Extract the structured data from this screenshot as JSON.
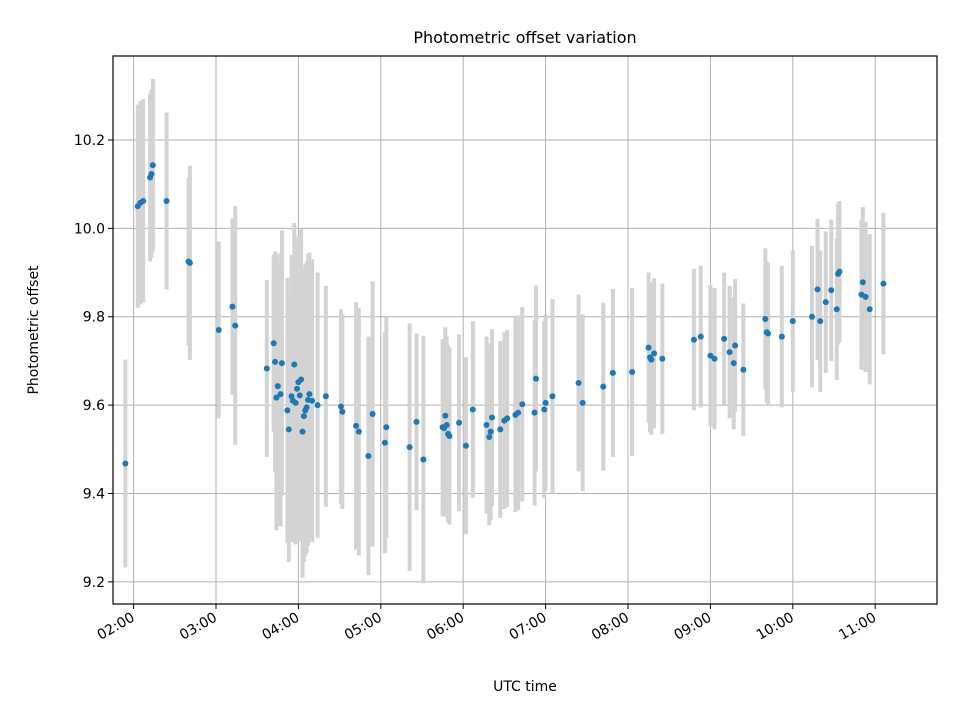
{
  "chart_data": {
    "type": "scatter",
    "title": "Photometric offset variation",
    "xlabel": "UTC time",
    "ylabel": "Photometric offset",
    "x_ticks": [
      "02:00",
      "03:00",
      "04:00",
      "05:00",
      "06:00",
      "07:00",
      "08:00",
      "09:00",
      "10:00",
      "11:00"
    ],
    "y_ticks": [
      "9.2",
      "9.4",
      "9.6",
      "9.8",
      "10.0",
      "10.2"
    ],
    "xlim": [
      "01:45",
      "11:45"
    ],
    "ylim": [
      9.15,
      10.39
    ],
    "grid": true,
    "colors": {
      "points": "#1f77b4",
      "errorbars": "#d3d3d3",
      "grid": "#b0b0b0"
    },
    "series": [
      {
        "points": [
          [
            "01:54",
            9.468,
            0.235
          ],
          [
            "02:03",
            10.05,
            0.23
          ],
          [
            "02:05",
            10.058,
            0.23
          ],
          [
            "02:07",
            10.062,
            0.23
          ],
          [
            "02:12",
            10.115,
            0.19
          ],
          [
            "02:13",
            10.123,
            0.19
          ],
          [
            "02:14",
            10.143,
            0.195
          ],
          [
            "02:24",
            10.062,
            0.2
          ],
          [
            "02:40",
            9.925,
            0.19
          ],
          [
            "02:41",
            9.922,
            0.22
          ],
          [
            "03:02",
            9.77,
            0.2
          ],
          [
            "03:12",
            9.823,
            0.2
          ],
          [
            "03:14",
            9.78,
            0.27
          ],
          [
            "03:37",
            9.683,
            0.2
          ],
          [
            "03:42",
            9.74,
            0.2
          ],
          [
            "03:43",
            9.698,
            0.25
          ],
          [
            "03:44",
            9.617,
            0.3
          ],
          [
            "03:45",
            9.643,
            0.3
          ],
          [
            "03:47",
            9.625,
            0.3
          ],
          [
            "03:48",
            9.695,
            0.3
          ],
          [
            "03:52",
            9.588,
            0.3
          ],
          [
            "03:53",
            9.545,
            0.3
          ],
          [
            "03:55",
            9.62,
            0.32
          ],
          [
            "03:56",
            9.61,
            0.32
          ],
          [
            "03:57",
            9.692,
            0.32
          ],
          [
            "03:58",
            9.605,
            0.32
          ],
          [
            "03:59",
            9.637,
            0.33
          ],
          [
            "04:00",
            9.652,
            0.33
          ],
          [
            "04:01",
            9.622,
            0.33
          ],
          [
            "04:02",
            9.658,
            0.34
          ],
          [
            "04:03",
            9.54,
            0.33
          ],
          [
            "04:04",
            9.575,
            0.33
          ],
          [
            "04:05",
            9.588,
            0.33
          ],
          [
            "04:06",
            9.595,
            0.33
          ],
          [
            "04:07",
            9.612,
            0.33
          ],
          [
            "04:08",
            9.625,
            0.32
          ],
          [
            "04:10",
            9.61,
            0.32
          ],
          [
            "04:14",
            9.6,
            0.3
          ],
          [
            "04:20",
            9.62,
            0.25
          ],
          [
            "04:31",
            9.597,
            0.22
          ],
          [
            "04:32",
            9.585,
            0.22
          ],
          [
            "04:42",
            9.553,
            0.28
          ],
          [
            "04:44",
            9.54,
            0.28
          ],
          [
            "04:51",
            9.485,
            0.27
          ],
          [
            "04:54",
            9.58,
            0.3
          ],
          [
            "05:03",
            9.515,
            0.25
          ],
          [
            "05:04",
            9.55,
            0.25
          ],
          [
            "05:21",
            9.505,
            0.28
          ],
          [
            "05:26",
            9.562,
            0.2
          ],
          [
            "05:31",
            9.477,
            0.28
          ],
          [
            "05:45",
            9.55,
            0.2
          ],
          [
            "05:46",
            9.548,
            0.2
          ],
          [
            "05:47",
            9.576,
            0.2
          ],
          [
            "05:48",
            9.555,
            0.2
          ],
          [
            "05:49",
            9.535,
            0.2
          ],
          [
            "05:50",
            9.53,
            0.2
          ],
          [
            "05:57",
            9.56,
            0.2
          ],
          [
            "06:02",
            9.508,
            0.2
          ],
          [
            "06:07",
            9.59,
            0.2
          ],
          [
            "06:17",
            9.555,
            0.2
          ],
          [
            "06:19",
            9.528,
            0.2
          ],
          [
            "06:20",
            9.54,
            0.2
          ],
          [
            "06:21",
            9.572,
            0.2
          ],
          [
            "06:27",
            9.545,
            0.2
          ],
          [
            "06:30",
            9.565,
            0.2
          ],
          [
            "06:32",
            9.57,
            0.2
          ],
          [
            "06:38",
            9.578,
            0.22
          ],
          [
            "06:40",
            9.583,
            0.22
          ],
          [
            "06:43",
            9.602,
            0.22
          ],
          [
            "06:52",
            9.583,
            0.21
          ],
          [
            "06:53",
            9.66,
            0.21
          ],
          [
            "06:59",
            9.59,
            0.2
          ],
          [
            "07:00",
            9.605,
            0.2
          ],
          [
            "07:05",
            9.62,
            0.22
          ],
          [
            "07:24",
            9.65,
            0.2
          ],
          [
            "07:27",
            9.605,
            0.2
          ],
          [
            "07:42",
            9.642,
            0.19
          ],
          [
            "07:49",
            9.673,
            0.19
          ],
          [
            "08:03",
            9.675,
            0.19
          ],
          [
            "08:15",
            9.73,
            0.17
          ],
          [
            "08:16",
            9.708,
            0.17
          ],
          [
            "08:17",
            9.703,
            0.17
          ],
          [
            "08:19",
            9.717,
            0.17
          ],
          [
            "08:25",
            9.705,
            0.17
          ],
          [
            "08:48",
            9.748,
            0.16
          ],
          [
            "08:53",
            9.755,
            0.16
          ],
          [
            "09:00",
            9.712,
            0.16
          ],
          [
            "09:03",
            9.705,
            0.16
          ],
          [
            "09:10",
            9.75,
            0.15
          ],
          [
            "09:14",
            9.72,
            0.15
          ],
          [
            "09:17",
            9.695,
            0.15
          ],
          [
            "09:18",
            9.735,
            0.15
          ],
          [
            "09:24",
            9.68,
            0.15
          ],
          [
            "09:40",
            9.795,
            0.16
          ],
          [
            "09:41",
            9.765,
            0.16
          ],
          [
            "09:42",
            9.762,
            0.16
          ],
          [
            "09:52",
            9.755,
            0.16
          ],
          [
            "10:00",
            9.79,
            0.16
          ],
          [
            "10:14",
            9.8,
            0.16
          ],
          [
            "10:18",
            9.862,
            0.16
          ],
          [
            "10:20",
            9.79,
            0.16
          ],
          [
            "10:24",
            9.833,
            0.16
          ],
          [
            "10:28",
            9.86,
            0.16
          ],
          [
            "10:32",
            9.817,
            0.16
          ],
          [
            "10:33",
            9.897,
            0.16
          ],
          [
            "10:34",
            9.902,
            0.16
          ],
          [
            "10:50",
            9.85,
            0.17
          ],
          [
            "10:51",
            9.878,
            0.17
          ],
          [
            "10:53",
            9.845,
            0.17
          ],
          [
            "10:56",
            9.817,
            0.17
          ],
          [
            "11:06",
            9.875,
            0.16
          ]
        ]
      }
    ]
  }
}
